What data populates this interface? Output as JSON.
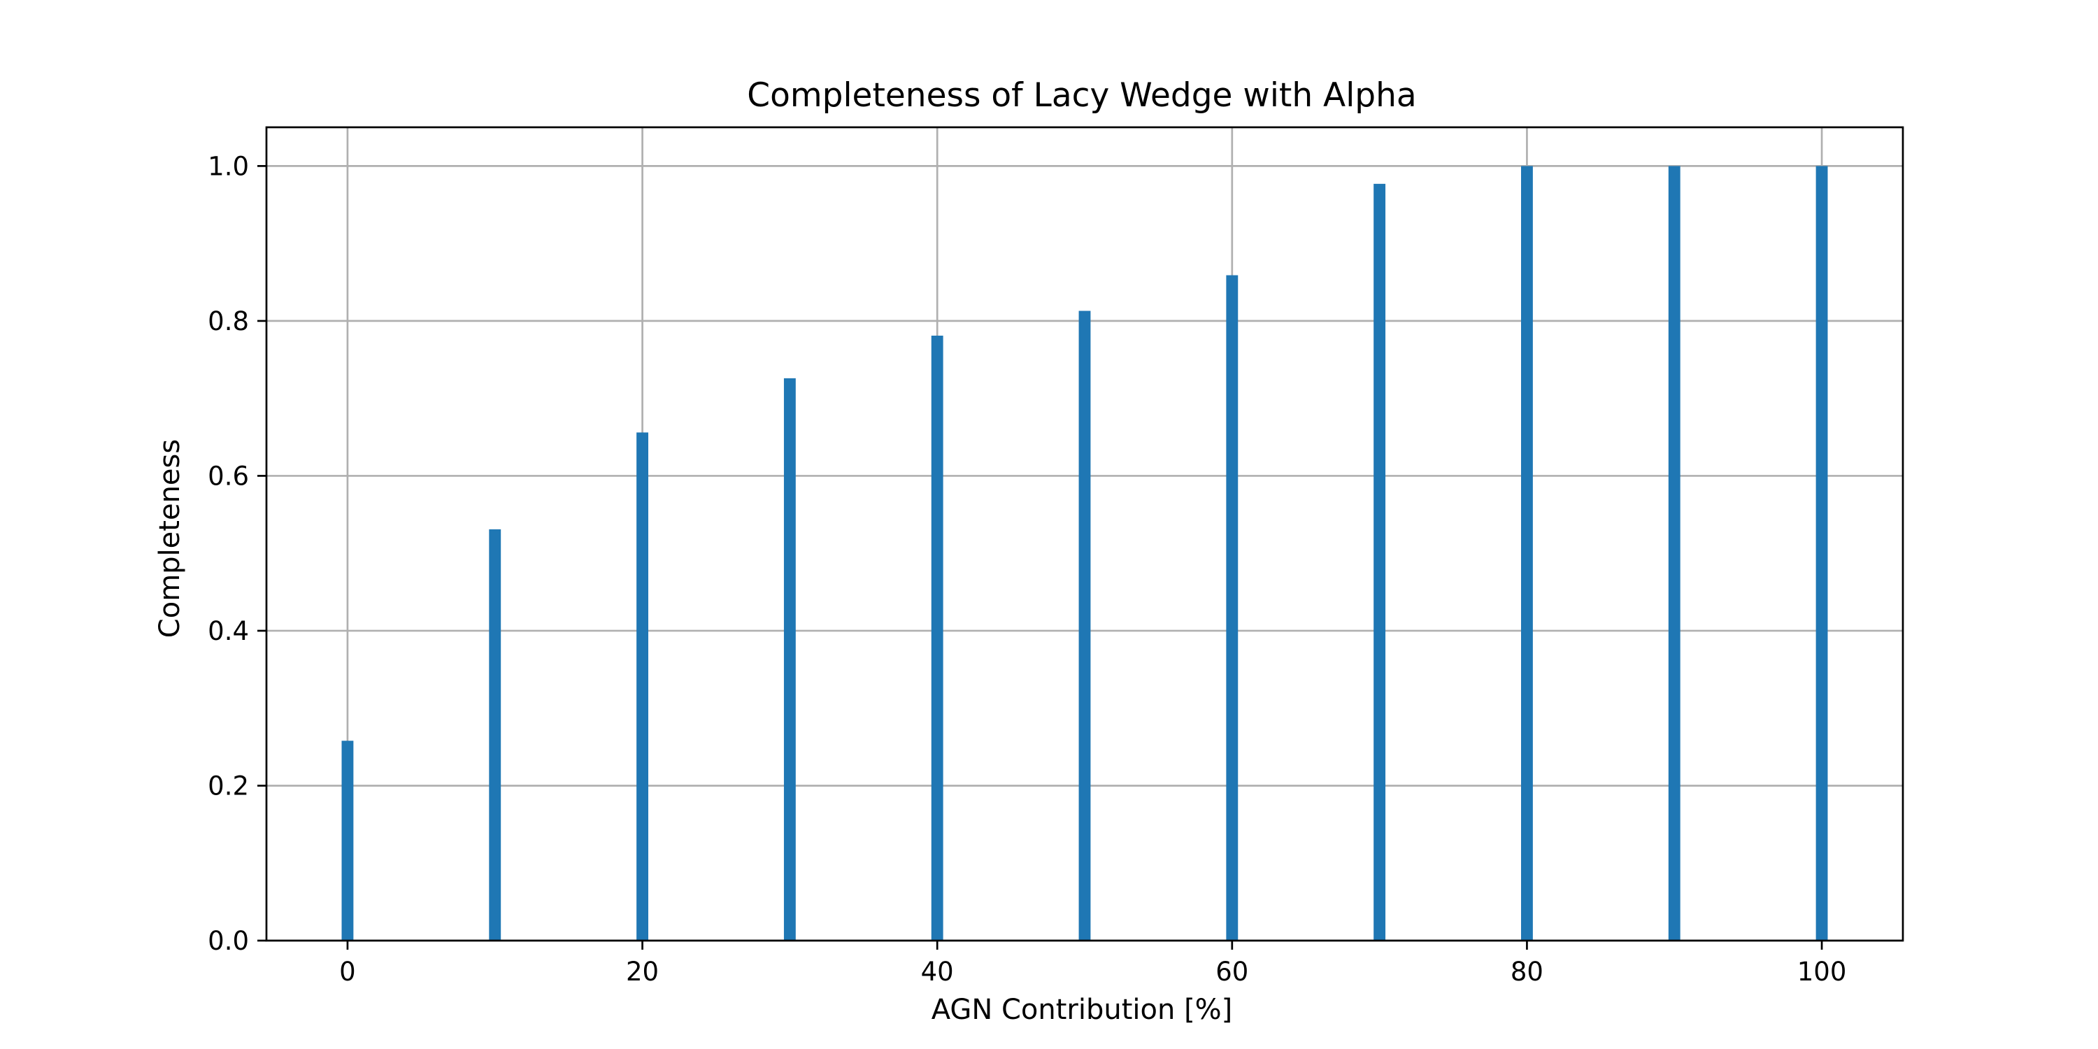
{
  "chart_data": {
    "type": "bar",
    "title": "Completeness of Lacy Wedge with Alpha",
    "xlabel": "AGN Contribution [%]",
    "ylabel": "Completeness",
    "x": [
      0,
      10,
      20,
      30,
      40,
      50,
      60,
      70,
      80,
      90,
      100
    ],
    "values": [
      0.258,
      0.531,
      0.656,
      0.726,
      0.781,
      0.813,
      0.859,
      0.977,
      1.0,
      1.0,
      1.0
    ],
    "xlim": [
      -5.5,
      105.5
    ],
    "ylim": [
      0,
      1.05
    ],
    "xticks": [
      "0",
      "20",
      "40",
      "60",
      "80",
      "100"
    ],
    "yticks": [
      "0.0",
      "0.2",
      "0.4",
      "0.6",
      "0.8",
      "1.0"
    ],
    "grid": true,
    "legend": "none",
    "colors": {
      "bar": "#1f77b4",
      "grid": "#b0b0b0",
      "axis": "#000000"
    }
  }
}
